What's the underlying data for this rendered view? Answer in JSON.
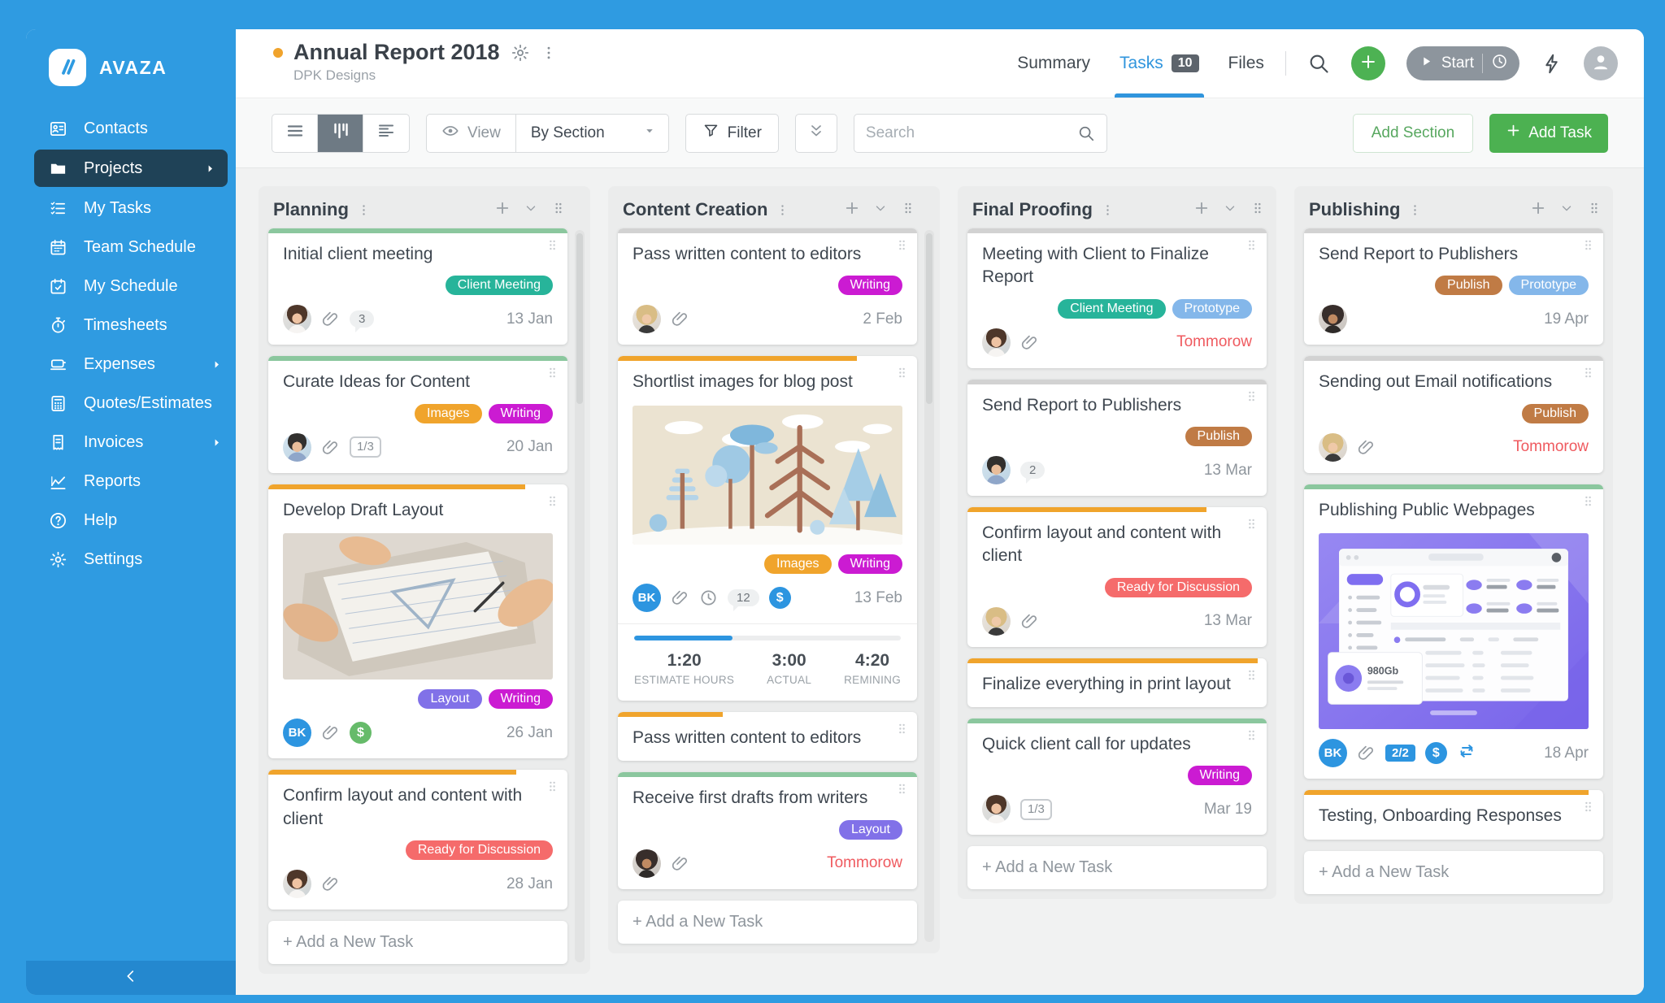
{
  "app": {
    "brand": "AVAZA"
  },
  "sidebar": {
    "items": [
      {
        "label": "Contacts",
        "icon": "contact-card"
      },
      {
        "label": "Projects",
        "icon": "folder",
        "active": true,
        "arrow": true
      },
      {
        "label": "My Tasks",
        "icon": "checklist"
      },
      {
        "label": "Team Schedule",
        "icon": "calendar"
      },
      {
        "label": "My Schedule",
        "icon": "calendar-check"
      },
      {
        "label": "Timesheets",
        "icon": "stopwatch"
      },
      {
        "label": "Expenses",
        "icon": "expense-card",
        "arrow": true
      },
      {
        "label": "Quotes/Estimates",
        "icon": "calculator"
      },
      {
        "label": "Invoices",
        "icon": "receipt",
        "arrow": true
      },
      {
        "label": "Reports",
        "icon": "chart"
      },
      {
        "label": "Help",
        "icon": "help-circle"
      },
      {
        "label": "Settings",
        "icon": "gear"
      }
    ]
  },
  "header": {
    "status_dot_color": "#f0a32c",
    "title": "Annual Report 2018",
    "subtitle": "DPK Designs",
    "tabs": [
      {
        "label": "Summary"
      },
      {
        "label": "Tasks",
        "badge": "10",
        "active": true
      },
      {
        "label": "Files"
      }
    ],
    "start_label": "Start"
  },
  "toolbar": {
    "view_label": "View",
    "group_by_value": "By Section",
    "filter_label": "Filter",
    "search_placeholder": "Search",
    "add_section_label": "Add Section",
    "add_task_label": "Add Task"
  },
  "colors": {
    "sidebar_blue": "#2f9be1",
    "green": "#4cb151",
    "teal": "#27b49a",
    "orange": "#f0a42c",
    "magenta": "#cb1bd2",
    "purple": "#8171e8",
    "salmon": "#f56b6b",
    "brown": "#c07b45",
    "light_blue": "#84b7ea",
    "bar_green": "#8bc79e",
    "bar_orange": "#f0a42c",
    "bar_gray": "#d2d2d2",
    "date_red": "#ef5a5f",
    "dollar_green": "#66bb6a",
    "dollar_blue": "#2d95e0"
  },
  "board": {
    "add_card_label": "+ Add a New Task",
    "columns": [
      {
        "name": "Planning",
        "scrollbar": true,
        "cards": [
          {
            "bar": "#8bc79e",
            "bar_width": "100%",
            "title": "Initial client meeting",
            "badges": [
              {
                "label": "Client Meeting",
                "bg": "#27b49a"
              }
            ],
            "meta": [
              {
                "t": "avatar",
                "v": "w1"
              },
              {
                "t": "paperclip"
              },
              {
                "t": "comment",
                "text": "3"
              }
            ],
            "date": "13 Jan",
            "date_color": "gray"
          },
          {
            "bar": "#8bc79e",
            "bar_width": "100%",
            "title": "Curate Ideas for Content",
            "badges": [
              {
                "label": "Images",
                "bg": "#f0a42c"
              },
              {
                "label": "Writing",
                "bg": "#cb1bd2"
              }
            ],
            "meta": [
              {
                "t": "avatar",
                "v": "m1"
              },
              {
                "t": "paperclip"
              },
              {
                "t": "fraction",
                "text": "1/3"
              }
            ],
            "date": "20 Jan",
            "date_color": "gray"
          },
          {
            "bar": "#f0a42c",
            "bar_width": "86%",
            "title": "Develop Draft Layout",
            "image": "photo-draft",
            "badges": [
              {
                "label": "Layout",
                "bg": "#8171e8"
              },
              {
                "label": "Writing",
                "bg": "#cb1bd2"
              }
            ],
            "meta": [
              {
                "t": "avatar",
                "v": "bk",
                "text": "BK"
              },
              {
                "t": "paperclip"
              },
              {
                "t": "dollar",
                "color": "#66bb6a"
              }
            ],
            "date": "26 Jan",
            "date_color": "gray"
          },
          {
            "bar": "#f0a42c",
            "bar_width": "83%",
            "title": "Confirm layout and content with client",
            "badges": [
              {
                "label": "Ready for Discussion",
                "bg": "#f56b6b"
              }
            ],
            "meta": [
              {
                "t": "avatar",
                "v": "w1"
              },
              {
                "t": "paperclip"
              }
            ],
            "date": "28 Jan",
            "date_color": "gray"
          }
        ]
      },
      {
        "name": "Content Creation",
        "scrollbar": true,
        "cards": [
          {
            "bar": "#d2d2d2",
            "bar_width": "100%",
            "title": "Pass written content to editors",
            "badges": [
              {
                "label": "Writing",
                "bg": "#cb1bd2"
              }
            ],
            "meta": [
              {
                "t": "avatar",
                "v": "w2"
              },
              {
                "t": "paperclip"
              }
            ],
            "date": "2 Feb",
            "date_color": "gray"
          },
          {
            "bar": "#f0a42c",
            "bar_width": "80%",
            "title": "Shortlist images for blog post",
            "image": "illustration-trees",
            "badges": [
              {
                "label": "Images",
                "bg": "#f0a42c"
              },
              {
                "label": "Writing",
                "bg": "#cb1bd2"
              }
            ],
            "meta": [
              {
                "t": "avatar",
                "v": "bk",
                "text": "BK"
              },
              {
                "t": "paperclip"
              },
              {
                "t": "clock"
              },
              {
                "t": "comment",
                "text": "12"
              },
              {
                "t": "dollar",
                "color": "#2d95e0"
              }
            ],
            "date": "13 Feb",
            "date_color": "gray",
            "stats": {
              "progress_pct": 37,
              "items": [
                {
                  "value": "1:20",
                  "label": "ESTIMATE HOURS"
                },
                {
                  "value": "3:00",
                  "label": "ACTUAL"
                },
                {
                  "value": "4:20",
                  "label": "REMINING"
                }
              ]
            }
          },
          {
            "bar": "#f0a42c",
            "bar_width": "35%",
            "title": "Pass written content to editors"
          },
          {
            "bar": "#8bc79e",
            "bar_width": "100%",
            "title": "Receive first drafts from writers",
            "badges": [
              {
                "label": "Layout",
                "bg": "#8171e8"
              }
            ],
            "meta": [
              {
                "t": "avatar",
                "v": "w3"
              },
              {
                "t": "paperclip"
              }
            ],
            "date": "Tommorow",
            "date_color": "red"
          }
        ]
      },
      {
        "name": "Final Proofing",
        "scrollbar": false,
        "cards": [
          {
            "bar": "#d2d2d2",
            "bar_width": "100%",
            "title": "Meeting with Client to Finalize Report",
            "badges": [
              {
                "label": "Client Meeting",
                "bg": "#27b49a"
              },
              {
                "label": "Prototype",
                "bg": "#84b7ea"
              }
            ],
            "meta": [
              {
                "t": "avatar",
                "v": "w1"
              },
              {
                "t": "paperclip"
              }
            ],
            "date": "Tommorow",
            "date_color": "red"
          },
          {
            "bar": "#d2d2d2",
            "bar_width": "100%",
            "title": "Send Report to Publishers",
            "badges": [
              {
                "label": "Publish",
                "bg": "#c07b45"
              }
            ],
            "meta": [
              {
                "t": "avatar",
                "v": "m1"
              },
              {
                "t": "comment",
                "text": "2"
              }
            ],
            "date": "13 Mar",
            "date_color": "gray"
          },
          {
            "bar": "#f0a42c",
            "bar_width": "80%",
            "title": "Confirm layout and content with client",
            "badges": [
              {
                "label": "Ready for Discussion",
                "bg": "#f56b6b"
              }
            ],
            "meta": [
              {
                "t": "avatar",
                "v": "w2"
              },
              {
                "t": "paperclip"
              }
            ],
            "date": "13 Mar",
            "date_color": "gray"
          },
          {
            "bar": "#f0a42c",
            "bar_width": "97%",
            "title": "Finalize everything in print layout"
          },
          {
            "bar": "#8bc79e",
            "bar_width": "100%",
            "title": "Quick client call for updates",
            "badges": [
              {
                "label": "Writing",
                "bg": "#cb1bd2"
              }
            ],
            "meta": [
              {
                "t": "avatar",
                "v": "w1"
              },
              {
                "t": "fraction",
                "text": "1/3"
              }
            ],
            "date": "Mar 19",
            "date_color": "gray"
          }
        ]
      },
      {
        "name": "Publishing",
        "scrollbar": false,
        "cards": [
          {
            "bar": "#d2d2d2",
            "bar_width": "100%",
            "title": "Send Report to Publishers",
            "badges": [
              {
                "label": "Publish",
                "bg": "#c07b45"
              },
              {
                "label": "Prototype",
                "bg": "#84b7ea"
              }
            ],
            "meta": [
              {
                "t": "avatar",
                "v": "w3"
              }
            ],
            "date": "19 Apr",
            "date_color": "gray"
          },
          {
            "bar": "#d2d2d2",
            "bar_width": "100%",
            "title": "Sending out Email notifications",
            "badges": [
              {
                "label": "Publish",
                "bg": "#c07b45"
              }
            ],
            "meta": [
              {
                "t": "avatar",
                "v": "w2"
              },
              {
                "t": "paperclip"
              }
            ],
            "date": "Tommorow",
            "date_color": "red"
          },
          {
            "bar": "#8bc79e",
            "bar_width": "100%",
            "title": "Publishing Public Webpages",
            "image": "dashboard-purple",
            "image_label": "980Gb",
            "meta": [
              {
                "t": "avatar",
                "v": "bk",
                "text": "BK"
              },
              {
                "t": "paperclip"
              },
              {
                "t": "pill",
                "text": "2/2"
              },
              {
                "t": "dollar",
                "color": "#2d95e0"
              },
              {
                "t": "recur"
              }
            ],
            "date": "18 Apr",
            "date_color": "gray"
          },
          {
            "bar": "#f0a42c",
            "bar_width": "95%",
            "title": "Testing, Onboarding Responses"
          }
        ]
      }
    ]
  }
}
